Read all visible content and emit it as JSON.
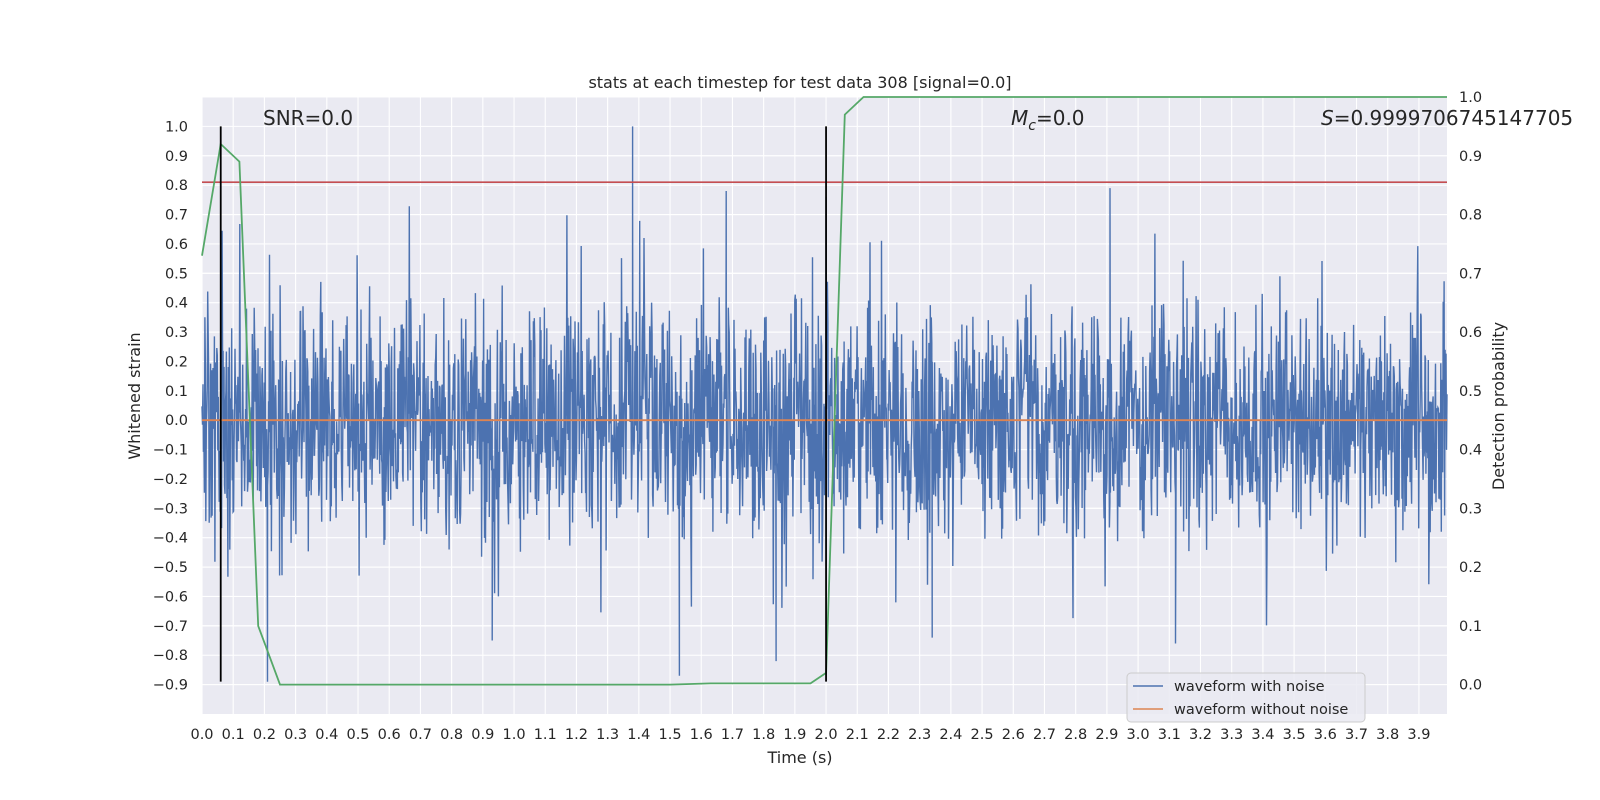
{
  "chart_data": {
    "type": "line",
    "title": "stats at each timestep for test data 308 [signal=0.0]",
    "xlabel": "Time (s)",
    "ylabel": "Whitened strain",
    "ylabel_right": "Detection probability",
    "xlim": [
      0.0,
      3.99
    ],
    "ylim": [
      -1.0,
      1.1
    ],
    "ylim_right": [
      -0.05,
      1.0
    ],
    "x_ticks": [
      "0.0",
      "0.1",
      "0.2",
      "0.3",
      "0.4",
      "0.5",
      "0.6",
      "0.7",
      "0.8",
      "0.9",
      "1.0",
      "1.1",
      "1.2",
      "1.3",
      "1.4",
      "1.5",
      "1.6",
      "1.7",
      "1.8",
      "1.9",
      "2.0",
      "2.1",
      "2.2",
      "2.3",
      "2.4",
      "2.5",
      "2.6",
      "2.7",
      "2.8",
      "2.9",
      "3.0",
      "3.1",
      "3.2",
      "3.3",
      "3.4",
      "3.5",
      "3.6",
      "3.7",
      "3.8",
      "3.9"
    ],
    "y_ticks": [
      "1.0",
      "0.9",
      "0.8",
      "0.7",
      "0.6",
      "0.5",
      "0.4",
      "0.3",
      "0.2",
      "0.1",
      "0.0",
      "−0.1",
      "−0.2",
      "−0.3",
      "−0.4",
      "−0.5",
      "−0.6",
      "−0.7",
      "−0.8",
      "−0.9"
    ],
    "y_ticks_right": [
      "1.0",
      "0.9",
      "0.8",
      "0.7",
      "0.6",
      "0.5",
      "0.4",
      "0.3",
      "0.2",
      "0.1",
      "0.0"
    ],
    "grid": true,
    "legend_position": "lower-right",
    "annotations": {
      "snr": "SNR=0.0",
      "mc_symbol": "M",
      "mc_subscript": "c",
      "mc_value": "=0.0",
      "s_symbol": "S",
      "s_value": "=0.9999706745147705"
    },
    "vertical_lines": [
      0.06,
      2.0
    ],
    "threshold_line": {
      "y": 0.81,
      "color": "#c44e52"
    },
    "series": [
      {
        "name": "waveform with noise",
        "color": "#4c72b0",
        "axis": "left",
        "approx_range": [
          -0.89,
          1.0
        ],
        "peaks": [
          {
            "x": 1.38,
            "y": 1.0
          },
          {
            "x": 1.38,
            "y": 0.74
          },
          {
            "x": 2.0,
            "y": 0.76
          },
          {
            "x": 1.68,
            "y": 0.78
          },
          {
            "x": 2.91,
            "y": 0.79
          },
          {
            "x": 0.06,
            "y": 0.83
          },
          {
            "x": 0.21,
            "y": -0.89
          },
          {
            "x": 1.53,
            "y": -0.87
          },
          {
            "x": 1.84,
            "y": -0.82
          },
          {
            "x": 3.12,
            "y": -0.76
          },
          {
            "x": 2.34,
            "y": -0.74
          },
          {
            "x": 0.93,
            "y": -0.75
          }
        ]
      },
      {
        "name": "waveform without noise",
        "color": "#dd8452",
        "axis": "left",
        "x": [
          0.0,
          3.99
        ],
        "y": [
          0.0,
          0.0
        ]
      },
      {
        "name": "",
        "color": "#55a868",
        "axis": "right",
        "x": [
          0.0,
          0.06,
          0.12,
          0.18,
          0.25,
          0.6,
          1.0,
          1.5,
          1.63,
          1.95,
          2.0,
          2.06,
          2.12,
          2.5,
          3.0,
          3.5,
          3.99
        ],
        "y": [
          0.73,
          0.92,
          0.89,
          0.1,
          0.0,
          0.0,
          0.0,
          0.0,
          0.002,
          0.002,
          0.02,
          0.97,
          1.0,
          1.0,
          1.0,
          1.0,
          1.0
        ]
      }
    ],
    "colors": {
      "plot_background": "#eaeaf2",
      "grid": "#ffffff",
      "text": "#262626",
      "vline": "#000000"
    }
  }
}
